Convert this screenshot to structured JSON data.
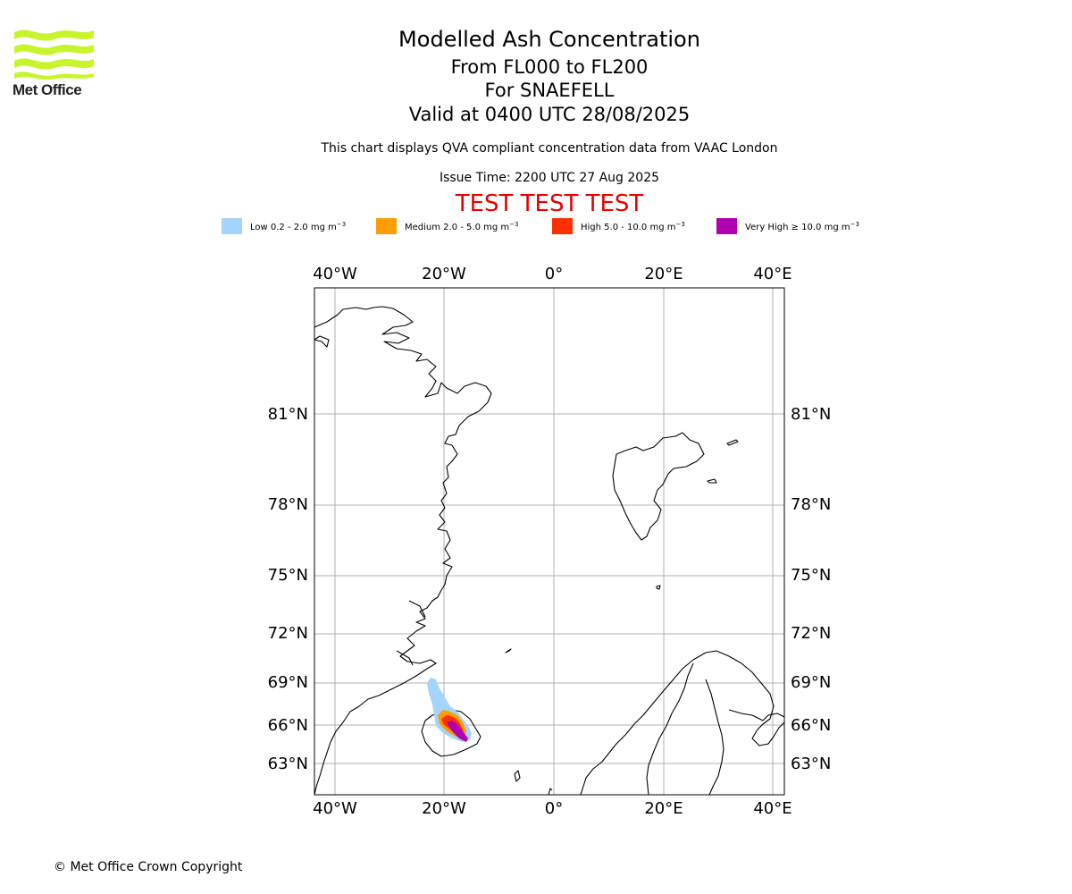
{
  "header": {
    "logo_text": "Met Office",
    "title_line1": "Modelled Ash Concentration",
    "title_line2": "From FL000 to FL200",
    "title_line3": "For SNAEFELL",
    "title_line4": "Valid at 0400 UTC 28/08/2025",
    "subtitle": "This chart displays QVA compliant concentration data from VAAC London",
    "issue_time": "Issue Time: 2200 UTC 27 Aug 2025",
    "banner": "TEST TEST TEST"
  },
  "legend": [
    {
      "label": "Low 0.2 - 2.0 mg m",
      "color": "#a3d4fb"
    },
    {
      "label": "Medium 2.0 - 5.0 mg m",
      "color": "#ff9c00"
    },
    {
      "label": "High 5.0 - 10.0 mg m",
      "color": "#ff3000"
    },
    {
      "label": "Very High ≥ 10.0 mg m",
      "color": "#b100b1"
    }
  ],
  "legend_unit_exponent": "−3",
  "map": {
    "longitude_ticks": [
      "40°W",
      "20°W",
      "0°",
      "20°E",
      "40°E"
    ],
    "latitude_ticks": [
      "81°N",
      "78°N",
      "75°N",
      "72°N",
      "69°N",
      "66°N",
      "63°N"
    ],
    "gridline_color": "#b0b0b0",
    "coastline_color": "#000000"
  },
  "footer": {
    "copyright": "© Met Office Crown Copyright"
  }
}
